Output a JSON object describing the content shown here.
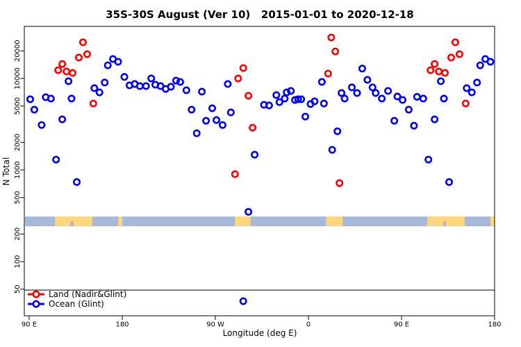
{
  "title": "35S-30S August (Ver 10)   2015-01-01 to 2020-12-18",
  "chart_data": {
    "type": "scatter",
    "title": "35S-30S August (Ver 10)   2015-01-01 to 2020-12-18",
    "xlabel": "Longitude (deg E)",
    "ylabel": "N Total",
    "y_scale": "log",
    "ylim": [
      40,
      35000
    ],
    "x_axis_note": "axis spans 450 deg eastward from 90E; first 90 deg of longitudes repeat at right edge",
    "x_ticks": [
      {
        "deg": 0,
        "label": "90 E"
      },
      {
        "deg": 90,
        "label": "180"
      },
      {
        "deg": 180,
        "label": "90 W"
      },
      {
        "deg": 270,
        "label": "0"
      },
      {
        "deg": 360,
        "label": "90 E"
      },
      {
        "deg": 450,
        "label": "180"
      }
    ],
    "y_ticks": [
      {
        "value": 50,
        "label": "50"
      },
      {
        "value": 100,
        "label": "100"
      },
      {
        "value": 200,
        "label": "200"
      },
      {
        "value": 500,
        "label": "500"
      },
      {
        "value": 1000,
        "label": "1000"
      },
      {
        "value": 2000,
        "label": "2000"
      },
      {
        "value": 5000,
        "label": "5000"
      },
      {
        "value": 10000,
        "label": "10000"
      },
      {
        "value": 20000,
        "label": "20000"
      }
    ],
    "series": [
      {
        "name": "Land (Nadir&Glint)",
        "color": "#ff0000",
        "points": [
          [
            52,
            24800
          ],
          [
            56,
            18400
          ],
          [
            48,
            16900
          ],
          [
            32,
            14400
          ],
          [
            28,
            12300
          ],
          [
            36,
            11900
          ],
          [
            42,
            11500
          ],
          [
            62,
            5330
          ],
          [
            207,
            13000
          ],
          [
            202,
            10000
          ],
          [
            212,
            6460
          ],
          [
            216,
            2900
          ],
          [
            199,
            900
          ],
          [
            292,
            28000
          ],
          [
            296,
            19700
          ],
          [
            289,
            11300
          ],
          [
            300,
            720
          ],
          [
            412,
            24800
          ],
          [
            416,
            18400
          ],
          [
            408,
            16900
          ],
          [
            392,
            14400
          ],
          [
            388,
            12300
          ],
          [
            396,
            11900
          ],
          [
            402,
            11500
          ],
          [
            422,
            5330
          ]
        ]
      },
      {
        "name": "Ocean (Glint)",
        "color": "#0000ff",
        "points": [
          [
            1,
            5930
          ],
          [
            5,
            4560
          ],
          [
            16,
            6240
          ],
          [
            21,
            6030
          ],
          [
            12,
            3100
          ],
          [
            32,
            3570
          ],
          [
            26,
            1300
          ],
          [
            46,
            740
          ],
          [
            38,
            9330
          ],
          [
            41,
            6030
          ],
          [
            63,
            7830
          ],
          [
            68,
            7040
          ],
          [
            73,
            9020
          ],
          [
            76,
            13900
          ],
          [
            81,
            16300
          ],
          [
            86,
            15200
          ],
          [
            92,
            10400
          ],
          [
            97,
            8400
          ],
          [
            102,
            8690
          ],
          [
            107,
            8260
          ],
          [
            113,
            8260
          ],
          [
            118,
            10000
          ],
          [
            122,
            8550
          ],
          [
            127,
            8260
          ],
          [
            132,
            7690
          ],
          [
            137,
            8110
          ],
          [
            142,
            9480
          ],
          [
            146,
            9160
          ],
          [
            152,
            7430
          ],
          [
            157,
            4560
          ],
          [
            162,
            2520
          ],
          [
            167,
            7180
          ],
          [
            171,
            3450
          ],
          [
            177,
            4720
          ],
          [
            181,
            3510
          ],
          [
            187,
            3100
          ],
          [
            192,
            8690
          ],
          [
            195,
            4260
          ],
          [
            212,
            350
          ],
          [
            218,
            1470
          ],
          [
            207,
            37
          ],
          [
            227,
            5150
          ],
          [
            232,
            5070
          ],
          [
            239,
            6580
          ],
          [
            242,
            5520
          ],
          [
            247,
            6030
          ],
          [
            249,
            7040
          ],
          [
            253,
            7310
          ],
          [
            257,
            5820
          ],
          [
            260,
            5930
          ],
          [
            263,
            5930
          ],
          [
            267,
            3830
          ],
          [
            272,
            5250
          ],
          [
            276,
            5620
          ],
          [
            283,
            9160
          ],
          [
            285,
            5330
          ],
          [
            293,
            1660
          ],
          [
            298,
            2650
          ],
          [
            302,
            6930
          ],
          [
            305,
            6030
          ],
          [
            312,
            7980
          ],
          [
            317,
            6930
          ],
          [
            322,
            12800
          ],
          [
            327,
            9660
          ],
          [
            332,
            7980
          ],
          [
            335,
            6930
          ],
          [
            341,
            6030
          ],
          [
            347,
            7310
          ],
          [
            353,
            3450
          ],
          [
            356,
            6350
          ],
          [
            361,
            5820
          ],
          [
            367,
            4560
          ],
          [
            372,
            3050
          ],
          [
            375,
            6300
          ],
          [
            381,
            6030
          ],
          [
            386,
            1300
          ],
          [
            392,
            3570
          ],
          [
            398,
            9330
          ],
          [
            401,
            6030
          ],
          [
            406,
            740
          ],
          [
            423,
            7830
          ],
          [
            428,
            7040
          ],
          [
            433,
            9020
          ],
          [
            436,
            13900
          ],
          [
            441,
            16300
          ],
          [
            446,
            15200
          ]
        ]
      }
    ],
    "map_strip": {
      "description": "land/ocean strip for latitude band 35S-30S",
      "ocean_color": "#a6b9d8",
      "land_color": "#fdd67d",
      "land_patches_deg": [
        [
          25,
          40
        ],
        [
          43,
          61
        ],
        [
          86,
          90
        ],
        [
          199,
          214
        ],
        [
          287,
          303
        ],
        [
          385,
          400
        ],
        [
          403,
          421
        ],
        [
          446,
          450
        ]
      ],
      "land_bridges_deg": [
        [
          40,
          43
        ],
        [
          400,
          403
        ]
      ]
    },
    "legend_position": "bottom-left"
  },
  "legend": {
    "items": [
      {
        "label": "Land (Nadir&Glint)",
        "color": "#ff0000"
      },
      {
        "label": "Ocean (Glint)",
        "color": "#0000ff"
      }
    ]
  }
}
